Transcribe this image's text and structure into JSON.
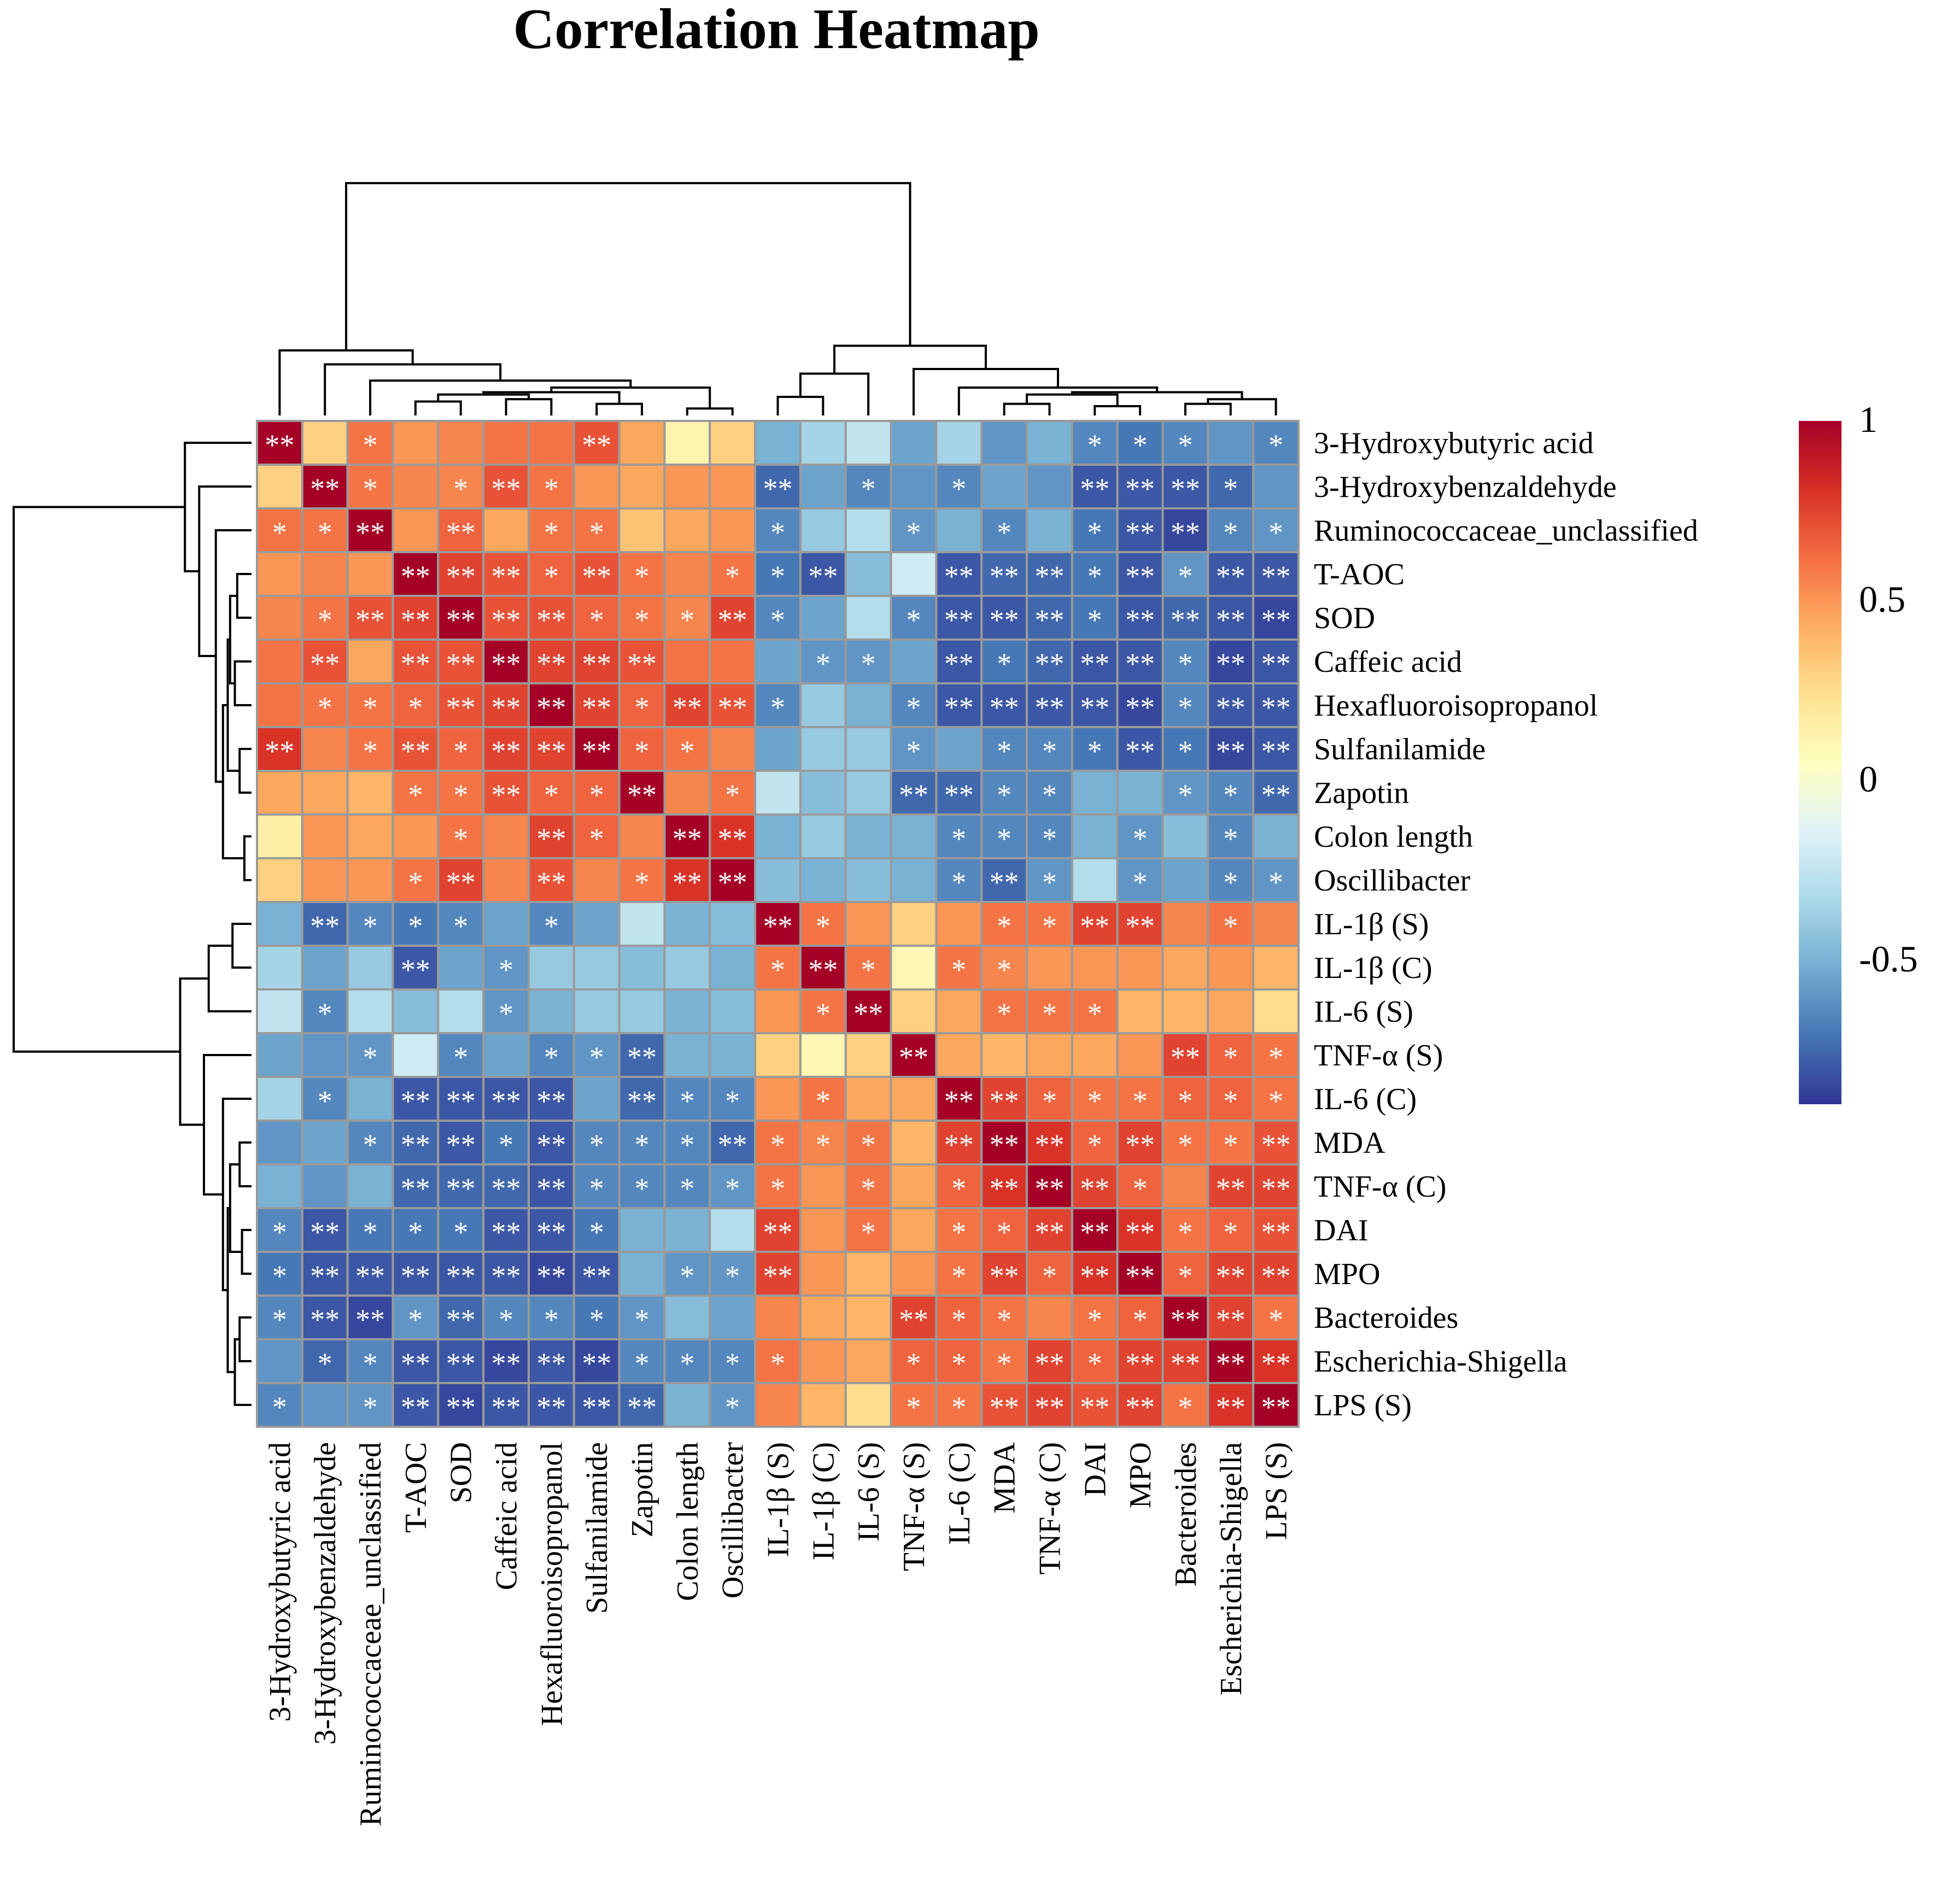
{
  "chart_data": {
    "type": "heatmap",
    "title": "Correlation Heatmap",
    "labels": [
      "3-Hydroxybutyric acid",
      "3-Hydroxybenzaldehyde",
      "Ruminococcaceae_unclassified",
      "T-AOC",
      "SOD",
      "Caffeic acid",
      "Hexafluoroisopropanol",
      "Sulfanilamide",
      "Zapotin",
      "Colon length",
      "Oscillibacter",
      "IL-1β (S)",
      "IL-1β (C)",
      "IL-6 (S)",
      "TNF-α (S)",
      "IL-6 (C)",
      "MDA",
      "TNF-α (C)",
      "DAI",
      "MPO",
      "Bacteroides",
      "Escherichia-Shigella",
      "LPS (S)"
    ],
    "values": [
      [
        1,
        0.3,
        0.6,
        0.5,
        0.55,
        0.6,
        0.6,
        0.7,
        0.45,
        0.12,
        0.3,
        -0.5,
        -0.35,
        -0.25,
        -0.55,
        -0.35,
        -0.6,
        -0.5,
        -0.65,
        -0.7,
        -0.65,
        -0.6,
        -0.65
      ],
      [
        0.3,
        1,
        0.6,
        0.55,
        0.55,
        0.7,
        0.6,
        0.5,
        0.45,
        0.5,
        0.5,
        -0.75,
        -0.55,
        -0.65,
        -0.6,
        -0.65,
        -0.55,
        -0.6,
        -0.8,
        -0.8,
        -0.8,
        -0.75,
        -0.6
      ],
      [
        0.6,
        0.6,
        1,
        0.5,
        0.65,
        0.45,
        0.6,
        0.6,
        0.35,
        0.45,
        0.5,
        -0.65,
        -0.4,
        -0.3,
        -0.6,
        -0.5,
        -0.65,
        -0.5,
        -0.7,
        -0.8,
        -0.85,
        -0.65,
        -0.6
      ],
      [
        0.5,
        0.55,
        0.5,
        1,
        0.75,
        0.7,
        0.65,
        0.7,
        0.6,
        0.55,
        0.6,
        -0.7,
        -0.8,
        -0.45,
        -0.2,
        -0.8,
        -0.75,
        -0.75,
        -0.7,
        -0.8,
        -0.6,
        -0.8,
        -0.8
      ],
      [
        0.55,
        0.6,
        0.7,
        0.75,
        1,
        0.7,
        0.7,
        0.65,
        0.6,
        0.55,
        0.75,
        -0.65,
        -0.55,
        -0.3,
        -0.65,
        -0.8,
        -0.8,
        -0.75,
        -0.7,
        -0.8,
        -0.75,
        -0.8,
        -0.85
      ],
      [
        0.6,
        0.7,
        0.45,
        0.7,
        0.7,
        1,
        0.75,
        0.75,
        0.7,
        0.6,
        0.6,
        -0.55,
        -0.6,
        -0.6,
        -0.55,
        -0.8,
        -0.7,
        -0.75,
        -0.8,
        -0.8,
        -0.65,
        -0.85,
        -0.8
      ],
      [
        0.6,
        0.6,
        0.6,
        0.65,
        0.7,
        0.75,
        1,
        0.75,
        0.65,
        0.75,
        0.7,
        -0.65,
        -0.4,
        -0.5,
        -0.65,
        -0.8,
        -0.8,
        -0.8,
        -0.8,
        -0.85,
        -0.65,
        -0.8,
        -0.8
      ],
      [
        0.8,
        0.55,
        0.6,
        0.7,
        0.65,
        0.75,
        0.75,
        1,
        0.65,
        0.6,
        0.55,
        -0.55,
        -0.4,
        -0.4,
        -0.6,
        -0.55,
        -0.65,
        -0.65,
        -0.7,
        -0.8,
        -0.7,
        -0.85,
        -0.8
      ],
      [
        0.45,
        0.45,
        0.4,
        0.6,
        0.6,
        0.7,
        0.65,
        0.65,
        1,
        0.55,
        0.6,
        -0.25,
        -0.45,
        -0.4,
        -0.75,
        -0.75,
        -0.65,
        -0.65,
        -0.5,
        -0.5,
        -0.6,
        -0.65,
        -0.75
      ],
      [
        0.15,
        0.5,
        0.45,
        0.5,
        0.6,
        0.55,
        0.75,
        0.65,
        0.55,
        1,
        0.8,
        -0.5,
        -0.4,
        -0.5,
        -0.5,
        -0.65,
        -0.65,
        -0.65,
        -0.5,
        -0.6,
        -0.45,
        -0.65,
        -0.5
      ],
      [
        0.3,
        0.5,
        0.5,
        0.6,
        0.75,
        0.55,
        0.7,
        0.55,
        0.6,
        0.8,
        1,
        -0.45,
        -0.5,
        -0.45,
        -0.5,
        -0.65,
        -0.75,
        -0.6,
        -0.3,
        -0.6,
        -0.55,
        -0.65,
        -0.6
      ],
      [
        -0.5,
        -0.75,
        -0.65,
        -0.7,
        -0.65,
        -0.55,
        -0.65,
        -0.55,
        -0.25,
        -0.5,
        -0.45,
        1,
        0.6,
        0.5,
        0.3,
        0.5,
        0.6,
        0.6,
        0.75,
        0.75,
        0.55,
        0.6,
        0.55
      ],
      [
        -0.35,
        -0.55,
        -0.4,
        -0.8,
        -0.55,
        -0.6,
        -0.4,
        -0.4,
        -0.45,
        -0.4,
        -0.5,
        0.6,
        1,
        0.6,
        0.1,
        0.6,
        0.55,
        0.5,
        0.5,
        0.5,
        0.45,
        0.5,
        0.4
      ],
      [
        -0.25,
        -0.65,
        -0.3,
        -0.45,
        -0.3,
        -0.6,
        -0.5,
        -0.4,
        -0.4,
        -0.5,
        -0.45,
        0.5,
        0.6,
        1,
        0.3,
        0.45,
        0.6,
        0.6,
        0.6,
        0.4,
        0.4,
        0.45,
        0.25
      ],
      [
        -0.55,
        -0.6,
        -0.6,
        -0.2,
        -0.65,
        -0.55,
        -0.65,
        -0.6,
        -0.75,
        -0.5,
        -0.5,
        0.3,
        0.1,
        0.3,
        1,
        0.45,
        0.4,
        0.45,
        0.45,
        0.5,
        0.75,
        0.65,
        0.6
      ],
      [
        -0.35,
        -0.65,
        -0.5,
        -0.8,
        -0.8,
        -0.8,
        -0.8,
        -0.55,
        -0.75,
        -0.65,
        -0.65,
        0.5,
        0.6,
        0.45,
        0.45,
        1,
        0.75,
        0.65,
        0.6,
        0.6,
        0.65,
        0.65,
        0.6
      ],
      [
        -0.6,
        -0.55,
        -0.65,
        -0.75,
        -0.8,
        -0.7,
        -0.8,
        -0.65,
        -0.65,
        -0.65,
        -0.75,
        0.6,
        0.55,
        0.6,
        0.4,
        0.75,
        1,
        0.8,
        0.65,
        0.75,
        0.6,
        0.6,
        0.7
      ],
      [
        -0.5,
        -0.6,
        -0.5,
        -0.75,
        -0.75,
        -0.75,
        -0.8,
        -0.65,
        -0.65,
        -0.65,
        -0.6,
        0.6,
        0.5,
        0.6,
        0.45,
        0.65,
        0.8,
        1,
        0.75,
        0.65,
        0.55,
        0.75,
        0.75
      ],
      [
        -0.65,
        -0.8,
        -0.7,
        -0.7,
        -0.7,
        -0.8,
        -0.8,
        -0.7,
        -0.5,
        -0.5,
        -0.3,
        0.75,
        0.5,
        0.6,
        0.45,
        0.6,
        0.65,
        0.75,
        1,
        0.8,
        0.6,
        0.65,
        0.7
      ],
      [
        -0.7,
        -0.8,
        -0.8,
        -0.8,
        -0.8,
        -0.8,
        -0.85,
        -0.8,
        -0.5,
        -0.6,
        -0.6,
        0.75,
        0.5,
        0.4,
        0.5,
        0.6,
        0.75,
        0.65,
        0.8,
        1,
        0.65,
        0.75,
        0.75
      ],
      [
        -0.65,
        -0.8,
        -0.85,
        -0.6,
        -0.75,
        -0.65,
        -0.65,
        -0.7,
        -0.6,
        -0.45,
        -0.55,
        0.55,
        0.45,
        0.4,
        0.75,
        0.65,
        0.6,
        0.55,
        0.6,
        0.65,
        1,
        0.75,
        0.6
      ],
      [
        -0.6,
        -0.75,
        -0.65,
        -0.8,
        -0.8,
        -0.85,
        -0.8,
        -0.85,
        -0.65,
        -0.65,
        -0.65,
        0.6,
        0.5,
        0.45,
        0.65,
        0.65,
        0.6,
        0.75,
        0.65,
        0.75,
        0.75,
        1,
        0.8
      ],
      [
        -0.65,
        -0.6,
        -0.6,
        -0.8,
        -0.85,
        -0.8,
        -0.8,
        -0.8,
        -0.75,
        -0.5,
        -0.6,
        0.55,
        0.4,
        0.25,
        0.6,
        0.6,
        0.7,
        0.75,
        0.7,
        0.75,
        0.6,
        0.8,
        1
      ]
    ],
    "significance": [
      [
        "**",
        "",
        "*",
        "",
        "",
        "",
        "",
        "**",
        "",
        "",
        "",
        "",
        "",
        "",
        "",
        "",
        "",
        "",
        "*",
        "*",
        "*",
        "",
        "*"
      ],
      [
        "",
        "**",
        "*",
        "",
        "*",
        "**",
        "*",
        "",
        "",
        "",
        "",
        "**",
        "",
        "*",
        "",
        "*",
        "",
        "",
        "**",
        "**",
        "**",
        "*",
        ""
      ],
      [
        "*",
        "*",
        "**",
        "",
        "**",
        "",
        "*",
        "*",
        "",
        "",
        "",
        "*",
        "",
        "",
        "*",
        "",
        "*",
        "",
        "*",
        "**",
        "**",
        "*",
        "*"
      ],
      [
        "",
        "",
        "",
        "**",
        "**",
        "**",
        "*",
        "**",
        "*",
        "",
        "*",
        "*",
        "**",
        "",
        "",
        "**",
        "**",
        "**",
        "*",
        "**",
        "*",
        "**",
        "**"
      ],
      [
        "",
        "*",
        "**",
        "**",
        "**",
        "**",
        "**",
        "*",
        "*",
        "*",
        "**",
        "*",
        "",
        "",
        "*",
        "**",
        "**",
        "**",
        "*",
        "**",
        "**",
        "**",
        "**"
      ],
      [
        "",
        "**",
        "",
        "**",
        "**",
        "**",
        "**",
        "**",
        "**",
        "",
        "",
        "",
        "*",
        "*",
        "",
        "**",
        "*",
        "**",
        "**",
        "**",
        "*",
        "**",
        "**"
      ],
      [
        "",
        "*",
        "*",
        "*",
        "**",
        "**",
        "**",
        "**",
        "*",
        "**",
        "**",
        "*",
        "",
        "",
        "*",
        "**",
        "**",
        "**",
        "**",
        "**",
        "*",
        "**",
        "**"
      ],
      [
        "**",
        "",
        "*",
        "**",
        "*",
        "**",
        "**",
        "**",
        "*",
        "*",
        "",
        "",
        "",
        "",
        "*",
        "",
        "*",
        "*",
        "*",
        "**",
        "*",
        "**",
        "**"
      ],
      [
        "",
        "",
        "",
        "*",
        "*",
        "**",
        "*",
        "*",
        "**",
        "",
        "*",
        "",
        "",
        "",
        "**",
        "**",
        "*",
        "*",
        "",
        "",
        "*",
        "*",
        "**"
      ],
      [
        "",
        "",
        "",
        "",
        "*",
        "",
        "**",
        "*",
        "",
        "**",
        "**",
        "",
        "",
        "",
        "",
        "*",
        "*",
        "*",
        "",
        "*",
        "",
        "*",
        ""
      ],
      [
        "",
        "",
        "",
        "*",
        "**",
        "",
        "**",
        "",
        "*",
        "**",
        "**",
        "",
        "",
        "",
        "",
        "*",
        "**",
        "*",
        "",
        "*",
        "",
        "*",
        "*"
      ],
      [
        "",
        "**",
        "*",
        "*",
        "*",
        "",
        "*",
        "",
        "",
        "",
        "",
        "**",
        "*",
        "",
        "",
        "",
        "*",
        "*",
        "**",
        "**",
        "",
        "*",
        ""
      ],
      [
        "",
        "",
        "",
        "**",
        "",
        "*",
        "",
        "",
        "",
        "",
        "",
        "*",
        "**",
        "*",
        "",
        "*",
        "*",
        "",
        "",
        "",
        "",
        "",
        ""
      ],
      [
        "",
        "*",
        "",
        "",
        "",
        "*",
        "",
        "",
        "",
        "",
        "",
        "",
        "*",
        "**",
        "",
        "",
        "*",
        "*",
        "*",
        "",
        "",
        "",
        ""
      ],
      [
        "",
        "",
        "*",
        "",
        "*",
        "",
        "*",
        "*",
        "**",
        "",
        "",
        "",
        "",
        "",
        "**",
        "",
        "",
        "",
        "",
        "",
        "**",
        "*",
        "*"
      ],
      [
        "",
        "*",
        "",
        "**",
        "**",
        "**",
        "**",
        "",
        "**",
        "*",
        "*",
        "",
        "*",
        "",
        "",
        "**",
        "**",
        "*",
        "*",
        "*",
        "*",
        "*",
        "*"
      ],
      [
        "",
        "",
        "*",
        "**",
        "**",
        "*",
        "**",
        "*",
        "*",
        "*",
        "**",
        "*",
        "*",
        "*",
        "",
        "**",
        "**",
        "**",
        "*",
        "**",
        "*",
        "*",
        "**"
      ],
      [
        "",
        "",
        "",
        "**",
        "**",
        "**",
        "**",
        "*",
        "*",
        "*",
        "*",
        "*",
        "",
        "*",
        "",
        "*",
        "**",
        "**",
        "**",
        "*",
        "",
        "**",
        "**"
      ],
      [
        "*",
        "**",
        "*",
        "*",
        "*",
        "**",
        "**",
        "*",
        "",
        "",
        "",
        "**",
        "",
        "*",
        "",
        "*",
        "*",
        "**",
        "**",
        "**",
        "*",
        "*",
        "**"
      ],
      [
        "*",
        "**",
        "**",
        "**",
        "**",
        "**",
        "**",
        "**",
        "",
        "*",
        "*",
        "**",
        "",
        "",
        "",
        "*",
        "**",
        "*",
        "**",
        "**",
        "*",
        "**",
        "**"
      ],
      [
        "*",
        "**",
        "**",
        "*",
        "**",
        "*",
        "*",
        "*",
        "*",
        "",
        "",
        "",
        "",
        "",
        "**",
        "*",
        "*",
        "",
        "*",
        "*",
        "**",
        "**",
        "*"
      ],
      [
        "",
        "*",
        "*",
        "**",
        "**",
        "**",
        "**",
        "**",
        "*",
        "*",
        "*",
        "*",
        "",
        "",
        "*",
        "*",
        "*",
        "**",
        "*",
        "**",
        "**",
        "**",
        "**"
      ],
      [
        "*",
        "",
        "*",
        "**",
        "**",
        "**",
        "**",
        "**",
        "**",
        "",
        "*",
        "",
        "",
        "",
        "*",
        "*",
        "**",
        "**",
        "**",
        "**",
        "*",
        "**",
        "**"
      ]
    ],
    "legend": {
      "ticks": [
        "1",
        "0.5",
        "0",
        "-0.5"
      ],
      "tick_values": [
        1,
        0.5,
        0,
        -0.5
      ],
      "range": [
        -0.9,
        1
      ],
      "placement": "right",
      "colors": [
        "#313695",
        "#4575b4",
        "#74add1",
        "#abd9e9",
        "#e0f3f8",
        "#ffffbf",
        "#fee090",
        "#fdae61",
        "#f46d43",
        "#d73027",
        "#a50026"
      ]
    },
    "border_color": "#9a9a9a",
    "star_color": "#ffffff"
  }
}
